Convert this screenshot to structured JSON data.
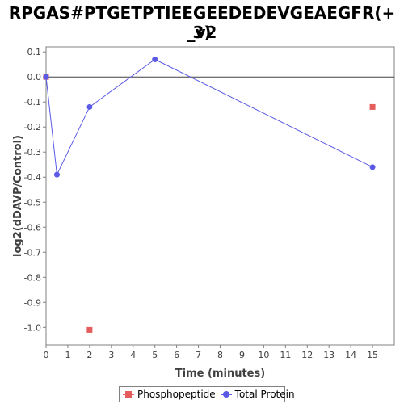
{
  "chart_data": {
    "type": "scatter",
    "title_line1": "RPGAS#PTGETPTIEEGEEDEDEVGEAEGFR(+ 3)",
    "title_line2": "_v2",
    "xlabel": "Time (minutes)",
    "ylabel": "log2(dDAVP/Control)",
    "xlim": [
      0,
      16
    ],
    "ylim": [
      -1.07,
      0.12
    ],
    "x_ticks": [
      0,
      1,
      2,
      3,
      4,
      5,
      6,
      7,
      8,
      9,
      10,
      11,
      12,
      13,
      14,
      15
    ],
    "y_ticks": [
      0.1,
      0.0,
      -0.1,
      -0.2,
      -0.3,
      -0.4,
      -0.5,
      -0.6,
      -0.7,
      -0.8,
      -0.9,
      -1.0
    ],
    "y_tick_labels": [
      "0.1",
      "0.0",
      "-0.1",
      "-0.2",
      "-0.3",
      "-0.4",
      "-0.5",
      "-0.6",
      "-0.7",
      "-0.8",
      "-0.9",
      "-1.0"
    ],
    "zero_line": true,
    "legend_position": "bottom",
    "series": [
      {
        "name": "Phosphopeptide",
        "color": "#e55c5c",
        "marker": "square",
        "connected": false,
        "points": [
          [
            0,
            0.0
          ],
          [
            2,
            -1.01
          ],
          [
            15,
            -0.12
          ]
        ]
      },
      {
        "name": "Total Protein",
        "color": "#5a5ae6",
        "marker": "circle",
        "connected": true,
        "points": [
          [
            0,
            0.0
          ],
          [
            0.5,
            -0.39
          ],
          [
            2,
            -0.12
          ],
          [
            5,
            0.07
          ],
          [
            15,
            -0.36
          ]
        ]
      }
    ]
  }
}
